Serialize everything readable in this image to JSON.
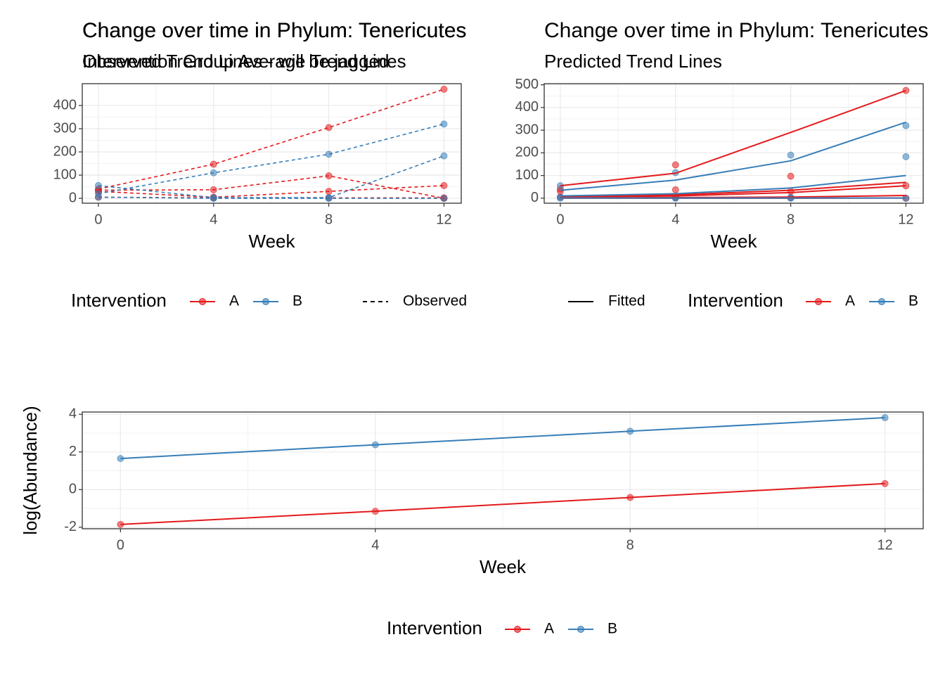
{
  "chart_data": [
    {
      "type": "line",
      "title": "Change over time in Phylum: Tenericutes",
      "subtitle": "Observed Trend Lines - will be jagged",
      "xlabel": "Week",
      "x": [
        0,
        4,
        8,
        12
      ],
      "xlim": [
        -0.56,
        12.6
      ],
      "xticks": [
        0,
        4,
        8,
        12
      ],
      "ylim": [
        -21,
        494
      ],
      "yticks": [
        0,
        100,
        200,
        300,
        400
      ],
      "grid": true,
      "linestyle": "dashed",
      "show_points": true,
      "legend": {
        "title": "Intervention",
        "entries": [
          {
            "label": "A",
            "color": "#e41a1c"
          },
          {
            "label": "B",
            "color": "#377eb8"
          }
        ],
        "linetype": "Observed"
      },
      "series": [
        {
          "color": "#e41a1c",
          "values": [
            40,
            147,
            305,
            470
          ]
        },
        {
          "color": "#e41a1c",
          "values": [
            35,
            37,
            97,
            0
          ]
        },
        {
          "color": "#e41a1c",
          "values": [
            30,
            5,
            30,
            55
          ]
        },
        {
          "color": "#e41a1c",
          "values": [
            5,
            2,
            2,
            2
          ]
        },
        {
          "color": "#377eb8",
          "values": [
            20,
            110,
            190,
            320
          ]
        },
        {
          "color": "#377eb8",
          "values": [
            55,
            3,
            3,
            183
          ]
        },
        {
          "color": "#377eb8",
          "values": [
            5,
            0,
            0,
            0
          ]
        }
      ]
    },
    {
      "type": "line",
      "title": "Change over time in Phylum: Tenericutes",
      "subtitle": "Predicted Trend Lines",
      "xlabel": "Week",
      "x": [
        0,
        4,
        8,
        12
      ],
      "xlim": [
        -0.56,
        12.6
      ],
      "xticks": [
        0,
        4,
        8,
        12
      ],
      "ylim": [
        -22,
        505
      ],
      "yticks": [
        0,
        100,
        200,
        300,
        400,
        500
      ],
      "grid": true,
      "linestyle": "solid",
      "show_points": false,
      "legend": {
        "title": "Intervention",
        "entries": [
          {
            "label": "A",
            "color": "#e41a1c"
          },
          {
            "label": "B",
            "color": "#377eb8"
          }
        ],
        "linetype": "Fitted"
      },
      "observed": [
        {
          "color": "#e41a1c",
          "values": [
            40,
            147,
            97,
            475
          ]
        },
        {
          "color": "#e41a1c",
          "values": [
            30,
            37,
            30,
            55
          ]
        },
        {
          "color": "#e41a1c",
          "values": [
            5,
            2,
            2,
            0
          ]
        },
        {
          "color": "#377eb8",
          "values": [
            55,
            113,
            190,
            320
          ]
        },
        {
          "color": "#377eb8",
          "values": [
            5,
            3,
            3,
            183
          ]
        },
        {
          "color": "#377eb8",
          "values": [
            0,
            0,
            0,
            0
          ]
        }
      ],
      "series": [
        {
          "color": "#e41a1c",
          "values": [
            55,
            110,
            290,
            475
          ]
        },
        {
          "color": "#e41a1c",
          "values": [
            10,
            15,
            35,
            70
          ]
        },
        {
          "color": "#e41a1c",
          "values": [
            5,
            10,
            25,
            55
          ]
        },
        {
          "color": "#e41a1c",
          "values": [
            2,
            3,
            5,
            12
          ]
        },
        {
          "color": "#e41a1c",
          "values": [
            0,
            0,
            0,
            1
          ]
        },
        {
          "color": "#377eb8",
          "values": [
            35,
            80,
            165,
            335
          ]
        },
        {
          "color": "#377eb8",
          "values": [
            10,
            20,
            45,
            100
          ]
        },
        {
          "color": "#377eb8",
          "values": [
            1,
            1,
            1,
            1
          ]
        }
      ]
    },
    {
      "type": "line",
      "title": "Change over time in Phylum: Tenericutes",
      "subtitle": "Intervention Group Average Trend Lines",
      "xlabel": "Week",
      "ylabel": "log(Abundance)",
      "x": [
        0,
        4,
        8,
        12
      ],
      "xlim": [
        -0.6,
        12.6
      ],
      "xticks": [
        0,
        4,
        8,
        12
      ],
      "ylim": [
        -2.08,
        4.12
      ],
      "yticks": [
        -2,
        0,
        2,
        4
      ],
      "grid": true,
      "linestyle": "solid",
      "show_points": true,
      "legend": {
        "title": "Intervention",
        "entries": [
          {
            "label": "A",
            "color": "#e41a1c"
          },
          {
            "label": "B",
            "color": "#377eb8"
          }
        ]
      },
      "series": [
        {
          "color": "#e41a1c",
          "values": [
            -1.85,
            -1.15,
            -0.42,
            0.32
          ]
        },
        {
          "color": "#377eb8",
          "values": [
            1.65,
            2.38,
            3.1,
            3.82
          ]
        }
      ]
    }
  ]
}
